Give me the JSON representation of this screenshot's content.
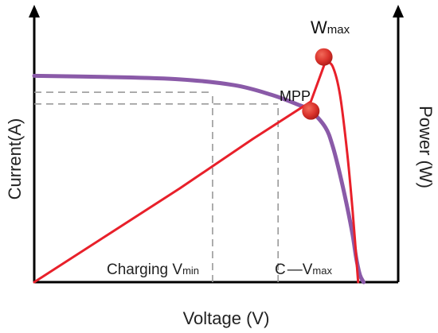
{
  "chart_data": {
    "type": "line",
    "xlabel": "Voltage (V)",
    "ylabel_left": "Current(A)",
    "ylabel_right": "Power (W)",
    "xlim": [
      0,
      100
    ],
    "ylim": [
      0,
      100
    ],
    "grid": false,
    "series": [
      {
        "name": "",
        "role": "current",
        "color": "#8a5aa8",
        "x": [
          0,
          20,
          40,
          55,
          65,
          72,
          76,
          80,
          82,
          84,
          86,
          87.5,
          88.5,
          89.5,
          90.5
        ],
        "y": [
          88,
          87.5,
          86.5,
          84,
          80,
          76,
          73,
          66,
          58,
          46,
          32,
          20,
          10,
          3,
          0
        ]
      },
      {
        "name": "",
        "role": "power",
        "color": "#e8202a",
        "x": [
          0,
          20,
          40,
          60,
          76,
          80,
          82,
          84,
          86,
          87.5,
          89
        ],
        "y": [
          0,
          20,
          40,
          61,
          77,
          94,
          92,
          80,
          55,
          30,
          0
        ]
      }
    ],
    "markers": [
      {
        "label": "W",
        "label_sub": "max",
        "x": 76,
        "y": 102,
        "color": "#d9322b"
      },
      {
        "label": "MPP",
        "x": 76,
        "y": 73,
        "color": "#d9322b"
      }
    ],
    "reference_lines": [
      {
        "label": "Charging V",
        "label_sub": "min",
        "x": 49,
        "y": 81
      },
      {
        "label": "C",
        "dash": "—",
        "label_tail": "V",
        "label_sub": "max",
        "x": 67,
        "y": 76
      }
    ]
  }
}
